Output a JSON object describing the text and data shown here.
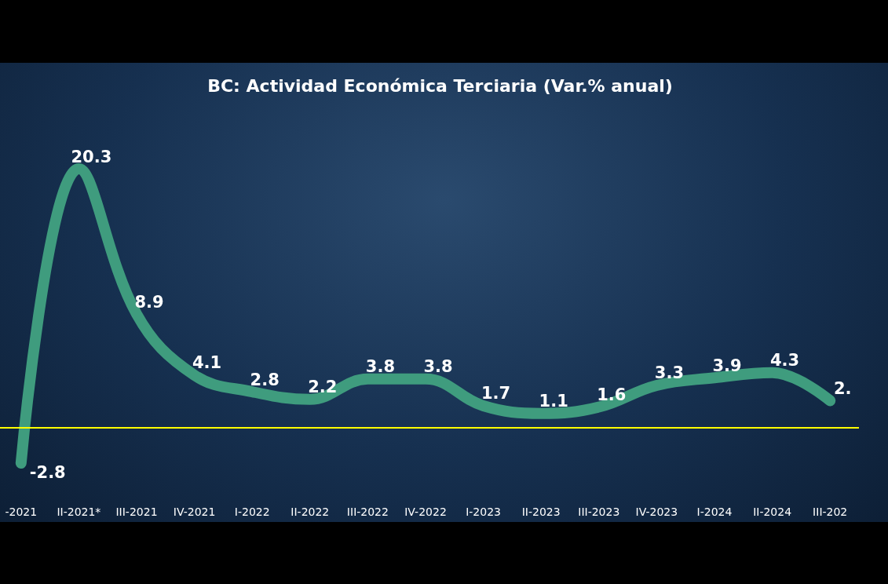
{
  "chart_data": {
    "type": "line",
    "title": "BC: Actividad Económica Terciaria (Var.% anual)",
    "categories": [
      "-2021",
      "II-2021*",
      "III-2021",
      "IV-2021",
      "I-2022",
      "II-2022",
      "III-2022",
      "IV-2022",
      "I-2023",
      "II-2023",
      "III-2023",
      "IV-2023",
      "I-2024",
      "II-2024",
      "III-202"
    ],
    "series": [
      {
        "color": "#3f9c7e",
        "values": [
          -2.8,
          20.3,
          8.9,
          4.1,
          2.8,
          2.2,
          3.8,
          3.8,
          1.7,
          1.1,
          1.6,
          3.3,
          3.9,
          4.3,
          2.1
        ],
        "value_labels": [
          "-2.8",
          "20.3",
          "8.9",
          "4.1",
          "2.8",
          "2.2",
          "3.8",
          "3.8",
          "1.7",
          "1.1",
          "1.6",
          "3.3",
          "3.9",
          "4.3",
          "2."
        ]
      }
    ],
    "ref_lines": [
      {
        "axis": "y",
        "value": 0,
        "color": "#ffff00"
      }
    ],
    "marker": "none",
    "line_style": "solid",
    "grid": false,
    "tick_labels": "x"
  }
}
